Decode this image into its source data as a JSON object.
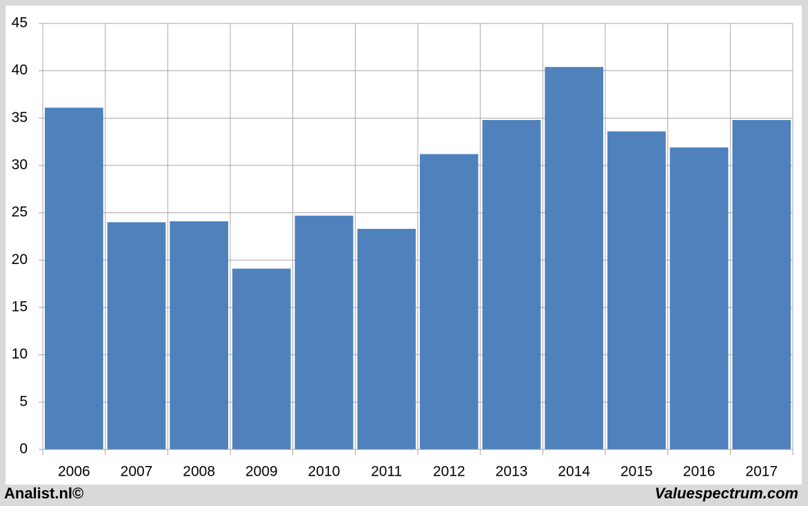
{
  "chart_data": {
    "type": "bar",
    "categories": [
      "2006",
      "2007",
      "2008",
      "2009",
      "2010",
      "2011",
      "2012",
      "2013",
      "2014",
      "2015",
      "2016",
      "2017"
    ],
    "values": [
      36.1,
      24.0,
      24.1,
      19.1,
      24.7,
      23.3,
      31.2,
      34.8,
      40.4,
      33.6,
      31.9,
      34.8
    ],
    "color": "#4f81bd",
    "ylim": [
      0,
      45
    ],
    "yticks": [
      0,
      5,
      10,
      15,
      20,
      25,
      30,
      35,
      40,
      45
    ],
    "grid": true
  },
  "footer": {
    "left": "Analist.nl©",
    "right": "Valuespectrum.com"
  }
}
